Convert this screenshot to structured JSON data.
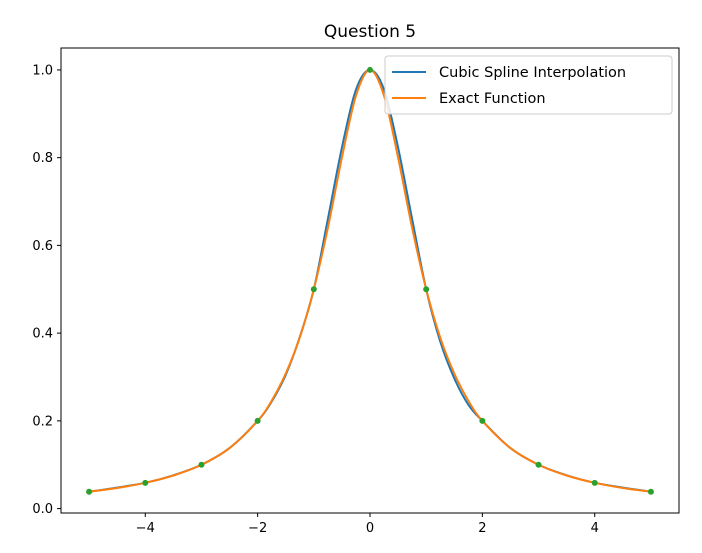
{
  "chart_data": {
    "type": "line",
    "title": "Question 5",
    "xlabel": "",
    "ylabel": "",
    "xlim": [
      -5.5,
      5.5
    ],
    "ylim": [
      -0.01,
      1.05
    ],
    "x_ticks": [
      -4,
      -2,
      0,
      2,
      4
    ],
    "x_tick_labels": [
      "−4",
      "−2",
      "0",
      "2",
      "4"
    ],
    "y_ticks": [
      0.0,
      0.2,
      0.4,
      0.6,
      0.8,
      1.0
    ],
    "y_tick_labels": [
      "0.0",
      "0.2",
      "0.4",
      "0.6",
      "0.8",
      "1.0"
    ],
    "grid": false,
    "legend_position": "top-right",
    "series": [
      {
        "name": "Cubic Spline Interpolation",
        "color": "#1f77b4",
        "x": [
          -5,
          -4.5,
          -4,
          -3.5,
          -3,
          -2.5,
          -2,
          -1.75,
          -1.5,
          -1.25,
          -1,
          -0.75,
          -0.5,
          -0.25,
          0,
          0.25,
          0.5,
          0.75,
          1,
          1.25,
          1.5,
          1.75,
          2,
          2.5,
          3,
          3.5,
          4,
          4.5,
          5
        ],
        "values": [
          0.0385,
          0.048,
          0.0588,
          0.076,
          0.1,
          0.138,
          0.2,
          0.244,
          0.305,
          0.391,
          0.5,
          0.66,
          0.823,
          0.955,
          1.0,
          0.955,
          0.823,
          0.66,
          0.5,
          0.381,
          0.297,
          0.237,
          0.2,
          0.138,
          0.1,
          0.076,
          0.0588,
          0.048,
          0.0385
        ]
      },
      {
        "name": "Exact Function",
        "color": "#ff7f0e",
        "x": [
          -5,
          -4.5,
          -4,
          -3.5,
          -3,
          -2.5,
          -2,
          -1.75,
          -1.5,
          -1.25,
          -1,
          -0.75,
          -0.5,
          -0.25,
          0,
          0.25,
          0.5,
          0.75,
          1,
          1.25,
          1.5,
          1.75,
          2,
          2.5,
          3,
          3.5,
          4,
          4.5,
          5
        ],
        "values": [
          0.0385,
          0.047,
          0.0588,
          0.0755,
          0.1,
          0.138,
          0.2,
          0.246,
          0.308,
          0.39,
          0.5,
          0.64,
          0.8,
          0.941,
          1.0,
          0.941,
          0.8,
          0.64,
          0.5,
          0.39,
          0.308,
          0.246,
          0.2,
          0.138,
          0.1,
          0.0755,
          0.0588,
          0.047,
          0.0385
        ]
      },
      {
        "name": "",
        "color": "#2ca02c",
        "markers_only": true,
        "x": [
          -5,
          -4,
          -3,
          -2,
          -1,
          0,
          1,
          2,
          3,
          4,
          5
        ],
        "values": [
          0.0385,
          0.0588,
          0.1,
          0.2,
          0.5,
          1.0,
          0.5,
          0.2,
          0.1,
          0.0588,
          0.0385
        ]
      }
    ]
  }
}
